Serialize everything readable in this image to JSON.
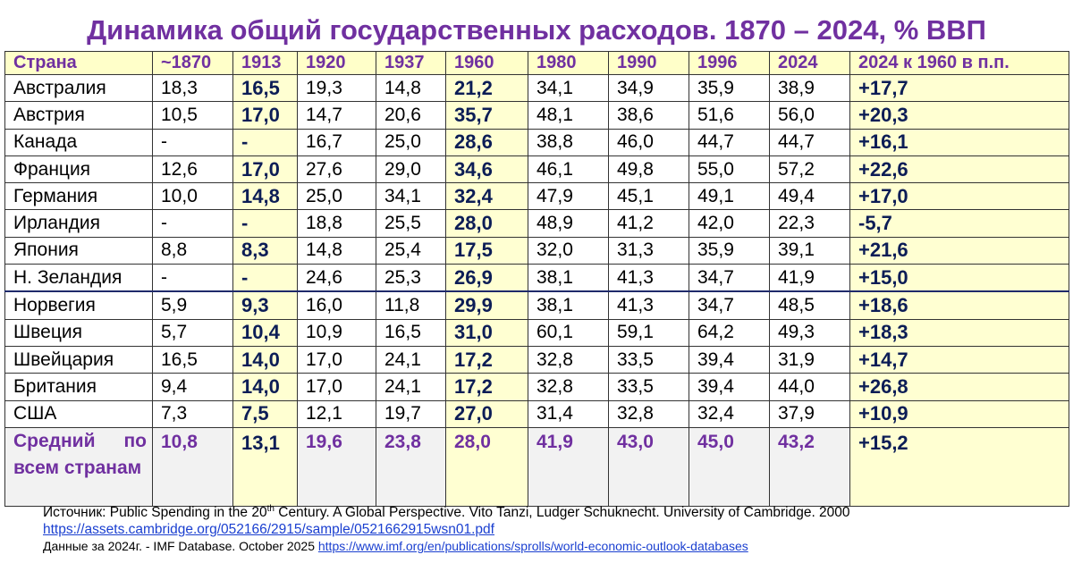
{
  "title": "Динамика общий государственных расходов. 1870 – 2024, % ВВП",
  "table": {
    "header": [
      "Страна",
      "~1870",
      "1913",
      "1920",
      "1937",
      "1960",
      "1980",
      "1990",
      "1996",
      "2024",
      "2024 к 1960 в п.п."
    ],
    "rows": [
      [
        "Австралия",
        "18,3",
        "16,5",
        "19,3",
        "14,8",
        "21,2",
        "34,1",
        "34,9",
        "35,9",
        "38,9",
        "+17,7"
      ],
      [
        "Австрия",
        "10,5",
        "17,0",
        "14,7",
        "20,6",
        "35,7",
        "48,1",
        "38,6",
        "51,6",
        "56,0",
        "+20,3"
      ],
      [
        "Канада",
        "-",
        "-",
        "16,7",
        "25,0",
        "28,6",
        "38,8",
        "46,0",
        "44,7",
        "44,7",
        "+16,1"
      ],
      [
        "Франция",
        "12,6",
        "17,0",
        "27,6",
        "29,0",
        "34,6",
        "46,1",
        "49,8",
        "55,0",
        "57,2",
        "+22,6"
      ],
      [
        "Германия",
        "10,0",
        "14,8",
        "25,0",
        "34,1",
        "32,4",
        "47,9",
        "45,1",
        "49,1",
        "49,4",
        "+17,0"
      ],
      [
        "Ирландия",
        "-",
        "-",
        "18,8",
        "25,5",
        "28,0",
        "48,9",
        "41,2",
        "42,0",
        "22,3",
        "-5,7"
      ],
      [
        "Япония",
        "8,8",
        "8,3",
        "14,8",
        "25,4",
        "17,5",
        "32,0",
        "31,3",
        "35,9",
        "39,1",
        "+21,6"
      ],
      [
        "Н. Зеландия",
        "-",
        "-",
        "24,6",
        "25,3",
        "26,9",
        "38,1",
        "41,3",
        "34,7",
        "41,9",
        "+15,0"
      ],
      [
        "Норвегия",
        "5,9",
        "9,3",
        "16,0",
        "11,8",
        "29,9",
        "38,1",
        "41,3",
        "34,7",
        "48,5",
        "+18,6"
      ],
      [
        "Швеция",
        "5,7",
        "10,4",
        "10,9",
        "16,5",
        "31,0",
        "60,1",
        "59,1",
        "64,2",
        "49,3",
        "+18,3"
      ],
      [
        "Швейцария",
        "16,5",
        "14,0",
        "17,0",
        "24,1",
        "17,2",
        "32,8",
        "33,5",
        "39,4",
        "31,9",
        "+14,7"
      ],
      [
        "Британия",
        "9,4",
        "14,0",
        "17,0",
        "24,1",
        "17,2",
        "32,8",
        "33,5",
        "39,4",
        "44,0",
        "+26,8"
      ],
      [
        "США",
        "7,3",
        "7,5",
        "12,1",
        "19,7",
        "27,0",
        "31,4",
        "32,8",
        "32,4",
        "37,9",
        "+10,9"
      ]
    ],
    "average": [
      "Средний по всем странам",
      "10,8",
      "13,1",
      "19,6",
      "23,8",
      "28,0",
      "41,9",
      "43,0",
      "45,0",
      "43,2",
      "+15,2"
    ]
  },
  "source": {
    "line1": [
      "Источник: Public Spending in the 20",
      "th",
      " Century. A Global Perspective. Vito Tanzi, Ludger Schuknecht. University of Cambridge. 2000"
    ],
    "link1": "https://assets.cambridge.org/052166/2915/sample/0521662915wsn01.pdf",
    "line2": "Данные за 2024г. - IMF Database. October 2025 ",
    "link2": "https://www.imf.org/en/publications/sprolls/world-economic-outlook-databases"
  }
}
